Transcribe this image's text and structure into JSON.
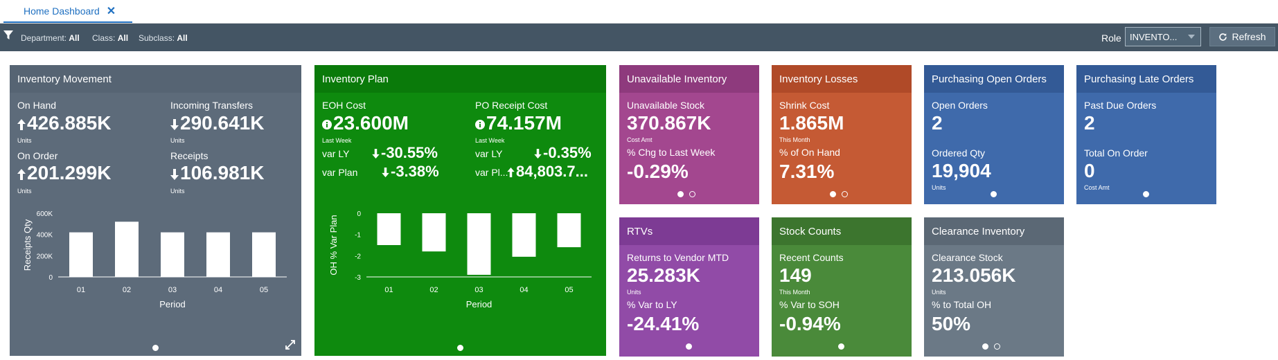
{
  "tab": {
    "label": "Home Dashboard"
  },
  "filters": [
    {
      "label": "Department:",
      "value": "All"
    },
    {
      "label": "Class:",
      "value": "All"
    },
    {
      "label": "Subclass:",
      "value": "All"
    }
  ],
  "role": {
    "label": "Role",
    "value": "INVENTO..."
  },
  "refresh": {
    "label": "Refresh"
  },
  "tiles": {
    "inventory_movement": {
      "title": "Inventory Movement",
      "color": "#5d6b7a",
      "header_color": "#566473",
      "metrics": [
        {
          "label": "On Hand",
          "value": "426.885K",
          "caption": "Units",
          "arrow": "up"
        },
        {
          "label": "Incoming Transfers",
          "value": "290.641K",
          "caption": "Units",
          "arrow": "down"
        },
        {
          "label": "On Order",
          "value": "201.299K",
          "caption": "Units",
          "arrow": "up"
        },
        {
          "label": "Receipts",
          "value": "106.981K",
          "caption": "Units",
          "arrow": "down"
        }
      ]
    },
    "inventory_plan": {
      "title": "Inventory Plan",
      "color": "#0e8a0e",
      "header_color": "#0a7a0a",
      "metrics": [
        {
          "label": "EOH Cost",
          "value": "23.600M",
          "caption": "Last Week"
        },
        {
          "label": "PO Receipt Cost",
          "value": "74.157M",
          "caption": "Last Week"
        }
      ],
      "vars_left": [
        {
          "label": "var LY",
          "value": "-30.55%",
          "arrow": "down"
        },
        {
          "label": "var Plan",
          "value": "-3.38%",
          "arrow": "down"
        }
      ],
      "vars_right": [
        {
          "label": "var LY",
          "value": "-0.35%",
          "arrow": "down"
        },
        {
          "label": "var Pl...",
          "value": "84,803.7...",
          "arrow": "up"
        }
      ]
    },
    "unavailable_inventory": {
      "title": "Unavailable Inventory",
      "color": "#a3478f",
      "header_color": "#8e3a7d",
      "metric1": {
        "label": "Unavailable Stock",
        "value": "370.867K",
        "caption": "Cost Amt"
      },
      "metric2": {
        "label": "% Chg to Last Week",
        "value": "-0.29%"
      }
    },
    "inventory_losses": {
      "title": "Inventory Losses",
      "color": "#c55a34",
      "header_color": "#b04a28",
      "metric1": {
        "label": "Shrink Cost",
        "value": "1.865M",
        "caption": "This Month"
      },
      "metric2": {
        "label": "% of On Hand",
        "value": "7.31%"
      }
    },
    "purchasing_open_orders": {
      "title": "Purchasing Open Orders",
      "color": "#3f6aab",
      "header_color": "#335a96",
      "metric1": {
        "label": "Open Orders",
        "value": "2"
      },
      "metric2": {
        "label": "Ordered Qty",
        "value": "19,904",
        "caption": "Units"
      }
    },
    "purchasing_late_orders": {
      "title": "Purchasing Late Orders",
      "color": "#3f6aab",
      "header_color": "#335a96",
      "metric1": {
        "label": "Past Due Orders",
        "value": "2"
      },
      "metric2": {
        "label": "Total On Order",
        "value": "0",
        "caption": "Cost Amt"
      }
    },
    "rtvs": {
      "title": "RTVs",
      "color": "#914ba7",
      "header_color": "#7d3b94",
      "metric1": {
        "label": "Returns to Vendor MTD",
        "value": "25.283K",
        "caption": "Units"
      },
      "metric2": {
        "label": "% Var to LY",
        "value": "-24.41%"
      }
    },
    "stock_counts": {
      "title": "Stock Counts",
      "color": "#4a8a3a",
      "header_color": "#3c752e",
      "metric1": {
        "label": "Recent Counts",
        "value": "149",
        "caption": "This Month"
      },
      "metric2": {
        "label": "% Var to SOH",
        "value": "-0.94%"
      }
    },
    "clearance_inventory": {
      "title": "Clearance Inventory",
      "color": "#6b7986",
      "header_color": "#5b6875",
      "metric1": {
        "label": "Clearance Stock",
        "value": "213.056K",
        "caption": "Units"
      },
      "metric2": {
        "label": "% to Total OH",
        "value": "50%"
      }
    }
  },
  "chart_data": [
    {
      "type": "bar",
      "categories": [
        "01",
        "02",
        "03",
        "04",
        "05"
      ],
      "values": [
        420000,
        520000,
        420000,
        420000,
        420000
      ],
      "xlabel": "Period",
      "ylabel": "Receipts Qty",
      "ylim": [
        0,
        600000
      ],
      "yticks": [
        "0",
        "200K",
        "400K",
        "600K"
      ]
    },
    {
      "type": "bar",
      "categories": [
        "01",
        "02",
        "03",
        "04",
        "05"
      ],
      "values": [
        -1.5,
        -1.8,
        -2.9,
        -2.05,
        -1.6
      ],
      "xlabel": "Period",
      "ylabel": "OH % Var Plan",
      "ylim": [
        -3,
        0
      ],
      "yticks": [
        "0",
        "-1",
        "-2",
        "-3"
      ]
    }
  ]
}
